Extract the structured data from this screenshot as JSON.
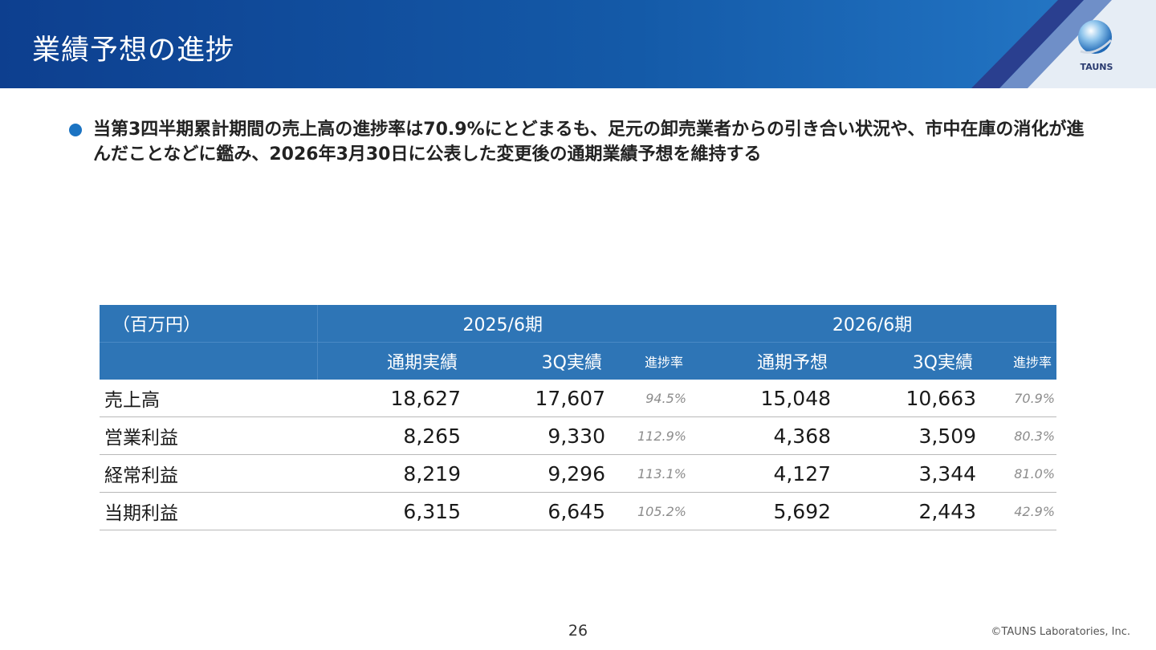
{
  "header": {
    "title": "業績予想の進捗",
    "logo_text": "TAUNS"
  },
  "summary": {
    "text": "当第3四半期累計期間の売上高の進捗率は70.9%にとどまるも、足元の卸売業者からの引き合い状況や、市中在庫の消化が進んだことなどに鑑み、2026年3月30日に公表した変更後の通期業績予想を維持する"
  },
  "table": {
    "unit_label": "（百万円）",
    "period_2025": "2025/6期",
    "period_2026": "2026/6期",
    "columns": [
      "通期実績",
      "3Q実績",
      "進捗率",
      "通期予想",
      "3Q実績",
      "進捗率"
    ],
    "rows": [
      {
        "label": "売上高",
        "v": [
          "18,627",
          "17,607",
          "94.5%",
          "15,048",
          "10,663",
          "70.9%"
        ]
      },
      {
        "label": "営業利益",
        "v": [
          "8,265",
          "9,330",
          "112.9%",
          "4,368",
          "3,509",
          "80.3%"
        ]
      },
      {
        "label": "経常利益",
        "v": [
          "8,219",
          "9,296",
          "113.1%",
          "4,127",
          "3,344",
          "81.0%"
        ]
      },
      {
        "label": "当期利益",
        "v": [
          "6,315",
          "6,645",
          "105.2%",
          "5,692",
          "2,443",
          "42.9%"
        ]
      }
    ]
  },
  "footer": {
    "page_number": "26",
    "copyright": "©TAUNS Laboratories, Inc."
  },
  "colors": {
    "header_blue": "#145aa8",
    "table_header": "#2e75b6",
    "bullet": "#1b73c2",
    "rate_text": "#8c8c8c"
  }
}
